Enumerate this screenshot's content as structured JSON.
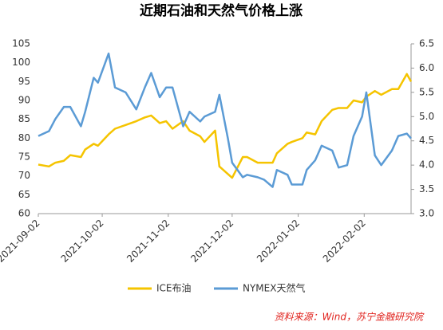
{
  "chart_data": {
    "type": "line",
    "title": "近期石油和天然气价格上涨",
    "x": [
      "2021-09-02",
      "2021-09-07",
      "2021-09-10",
      "2021-09-14",
      "2021-09-17",
      "2021-09-22",
      "2021-09-24",
      "2021-09-28",
      "2021-09-30",
      "2021-10-05",
      "2021-10-08",
      "2021-10-13",
      "2021-10-18",
      "2021-10-22",
      "2021-10-25",
      "2021-10-29",
      "2021-11-01",
      "2021-11-04",
      "2021-11-09",
      "2021-11-12",
      "2021-11-17",
      "2021-11-19",
      "2021-11-24",
      "2021-11-26",
      "2021-11-30",
      "2021-12-02",
      "2021-12-07",
      "2021-12-09",
      "2021-12-14",
      "2021-12-17",
      "2021-12-21",
      "2021-12-23",
      "2021-12-28",
      "2021-12-30",
      "2022-01-04",
      "2022-01-06",
      "2022-01-10",
      "2022-01-13",
      "2022-01-18",
      "2022-01-21",
      "2022-01-25",
      "2022-01-28",
      "2022-02-01",
      "2022-02-03",
      "2022-02-07",
      "2022-02-10",
      "2022-02-15",
      "2022-02-18",
      "2022-02-22",
      "2022-02-24"
    ],
    "series": [
      {
        "name": "ICE布油",
        "color": "#f5c400",
        "values": [
          73,
          72.5,
          73.5,
          74,
          75.5,
          75,
          77,
          78.5,
          78,
          81,
          82.5,
          83.5,
          84.5,
          85.5,
          86,
          84,
          84.5,
          82.5,
          84.5,
          82,
          80.5,
          79,
          82,
          72.5,
          70.5,
          69.5,
          75,
          75,
          73.5,
          73.5,
          73.5,
          76,
          78.5,
          79,
          80,
          81.5,
          81,
          84.5,
          87.5,
          88,
          88,
          90,
          89.5,
          91,
          92.5,
          91.5,
          93,
          93,
          97,
          95
        ]
      },
      {
        "name": "NYMEX天然气",
        "color": "#5b9bd5",
        "axis": "y2",
        "values": [
          4.6,
          4.7,
          4.95,
          5.2,
          5.2,
          4.8,
          5.1,
          5.8,
          5.7,
          6.3,
          5.6,
          5.5,
          5.15,
          5.6,
          5.9,
          5.4,
          5.6,
          5.6,
          4.8,
          5.1,
          4.9,
          5.0,
          5.1,
          5.45,
          4.55,
          4.05,
          3.75,
          3.8,
          3.75,
          3.7,
          3.55,
          3.9,
          3.8,
          3.6,
          3.6,
          3.9,
          4.1,
          4.4,
          4.3,
          3.95,
          4.0,
          4.6,
          5.0,
          5.5,
          4.2,
          4.0,
          4.3,
          4.6,
          4.65,
          4.55
        ]
      }
    ],
    "xlim": [
      "2021-09-02",
      "2022-02-24"
    ],
    "xticks": [
      "2021-09-02",
      "2021-10-02",
      "2021-11-02",
      "2021-12-02",
      "2022-01-02",
      "2022-02-02"
    ],
    "ylim": [
      60,
      105
    ],
    "yticks": [
      60,
      65,
      70,
      75,
      80,
      85,
      90,
      95,
      100,
      105
    ],
    "y2lim": [
      3.0,
      6.5
    ],
    "y2ticks": [
      {
        "value": 3.0,
        "label": "3.0"
      },
      3.5,
      {
        "value": 4.0,
        "label": "4.0"
      },
      4.5,
      {
        "value": 5.0,
        "label": "5.0"
      },
      5.5,
      {
        "value": 6.0,
        "label": "6.0"
      },
      6.5
    ],
    "source": "资料来源：Wind，苏宁金融研究院"
  }
}
